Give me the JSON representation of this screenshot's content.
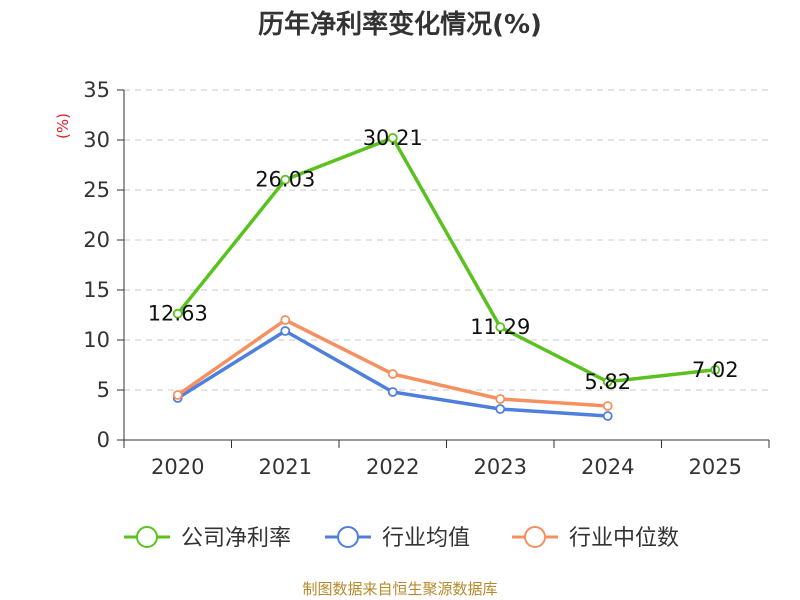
{
  "chart_data": {
    "type": "line",
    "title": "历年净利率变化情况(%)",
    "ylabel": "(%)",
    "xlabel": "",
    "categories": [
      "2020",
      "2021",
      "2022",
      "2023",
      "2024",
      "2025"
    ],
    "ylim": [
      0,
      35
    ],
    "yticks": [
      0,
      5,
      10,
      15,
      20,
      25,
      30,
      35
    ],
    "grid": true,
    "legend_position": "bottom",
    "series": [
      {
        "name": "公司净利率",
        "color": "#5ac21f",
        "values": [
          12.63,
          26.03,
          30.21,
          11.29,
          5.82,
          7.02
        ],
        "labels": [
          "12.63",
          "26.03",
          "30.21",
          "11.29",
          "5.82",
          "7.02"
        ]
      },
      {
        "name": "行业均值",
        "color": "#4e7fdc",
        "values": [
          4.2,
          10.9,
          4.8,
          3.1,
          2.4,
          null
        ]
      },
      {
        "name": "行业中位数",
        "color": "#f6905f",
        "values": [
          4.5,
          12.0,
          6.6,
          4.1,
          3.4,
          null
        ]
      }
    ]
  },
  "footer": {
    "source": "制图数据来自恒生聚源数据库"
  }
}
